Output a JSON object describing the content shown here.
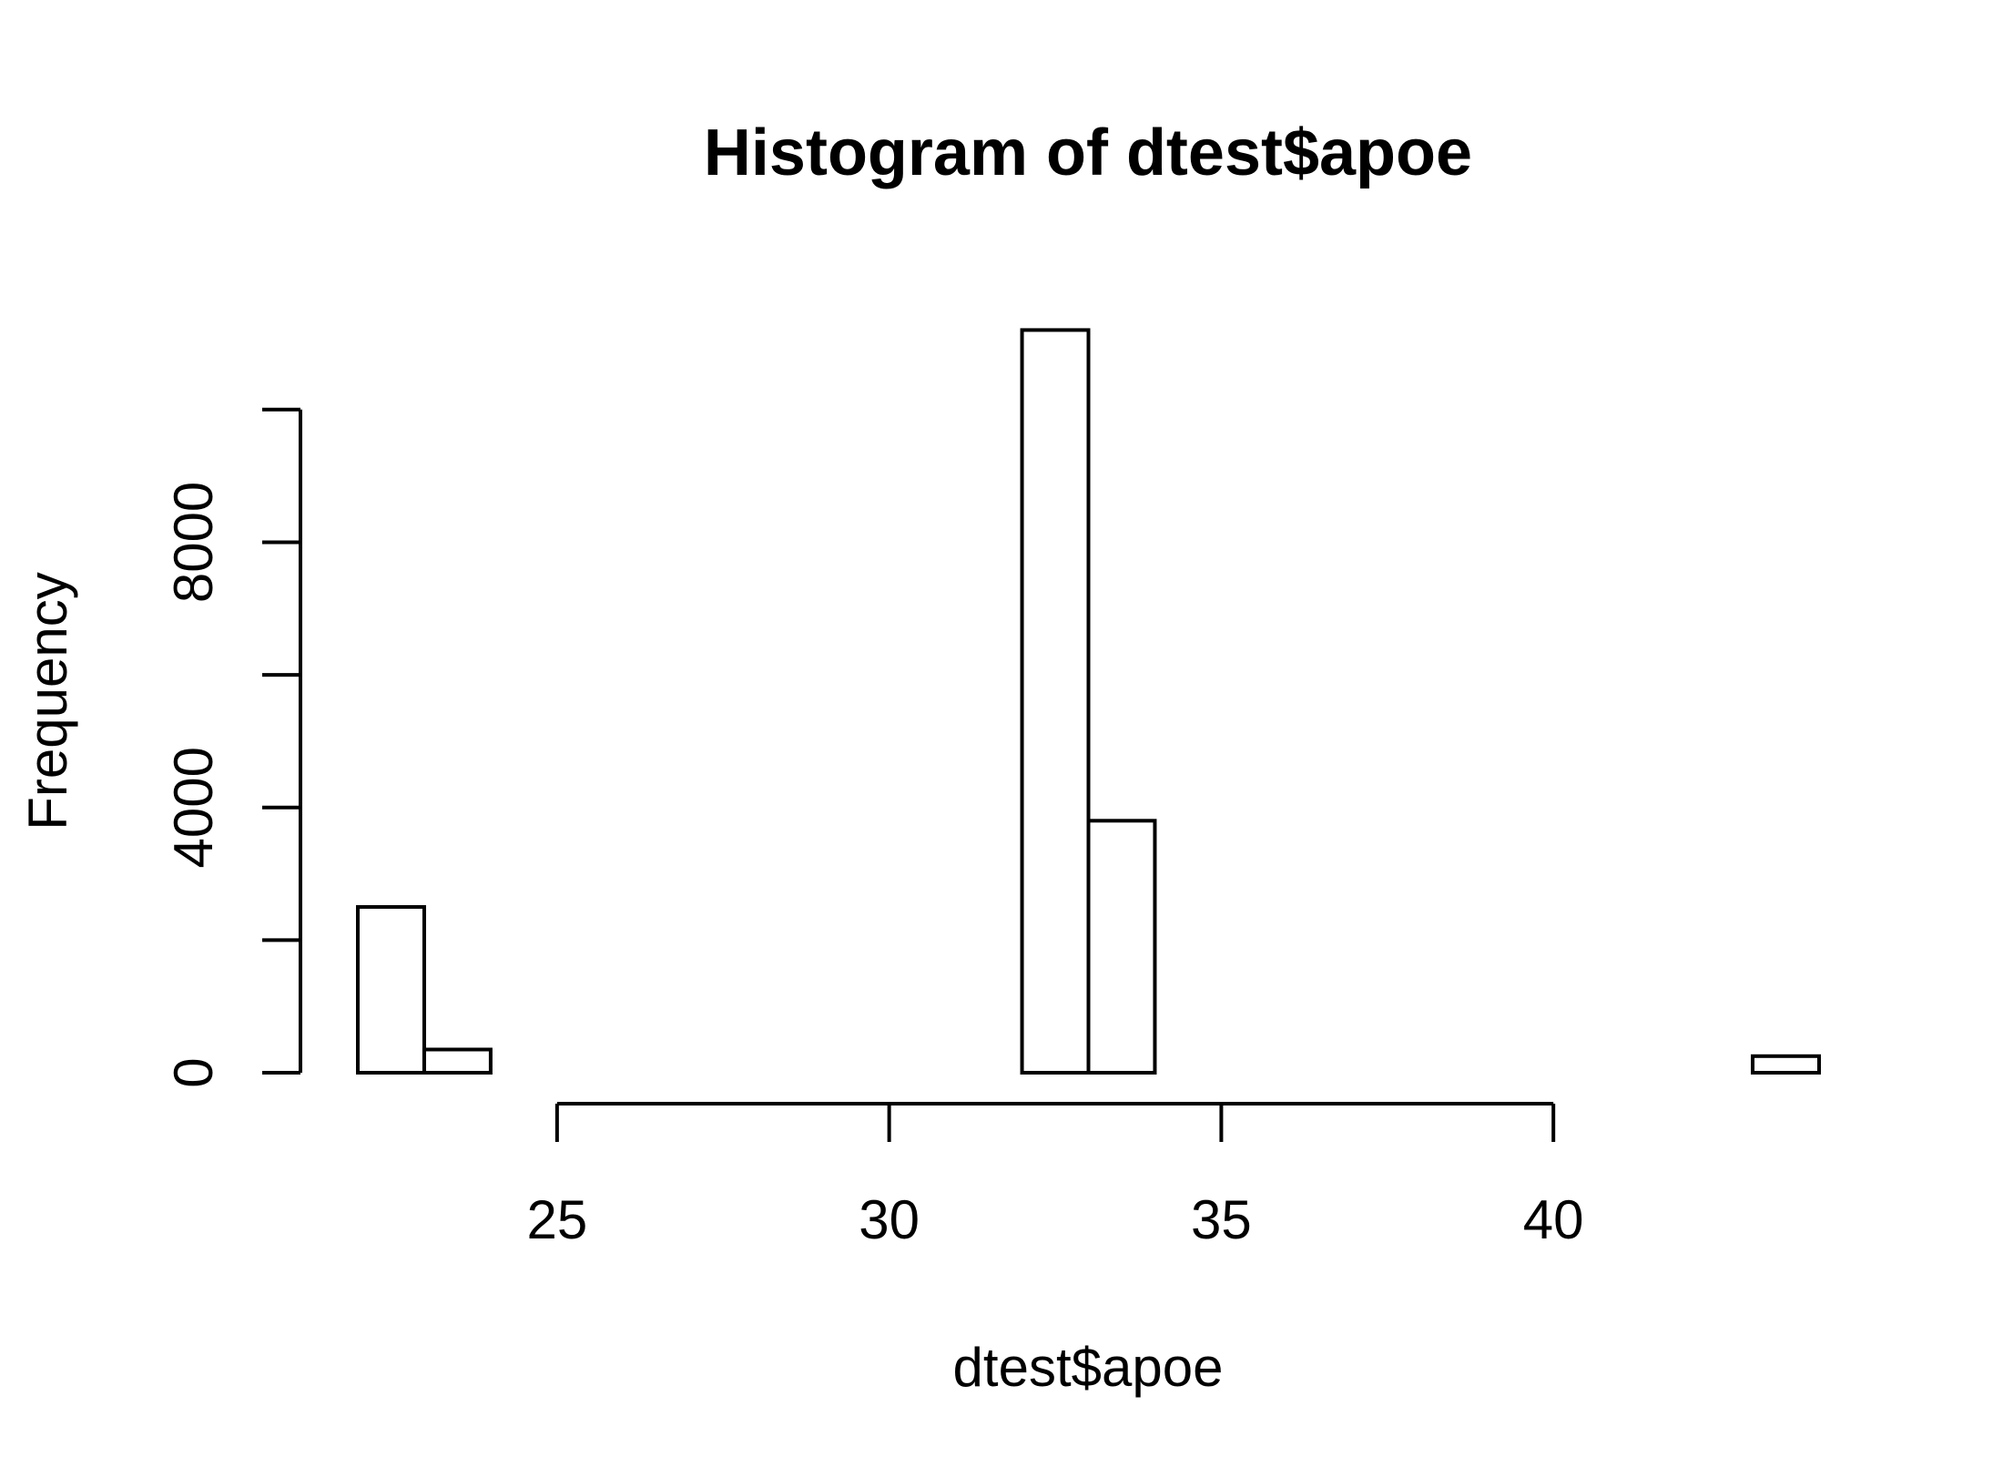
{
  "chart_data": {
    "type": "bar",
    "title": "Histogram of dtest$apoe",
    "xlabel": "dtest$apoe",
    "ylabel": "Frequency",
    "x_ticks": [
      25,
      30,
      35,
      40
    ],
    "y_ticks": [
      0,
      4000,
      8000
    ],
    "y_minor_ticks": [
      0,
      2000,
      4000,
      6000,
      8000,
      10000
    ],
    "bin_width": 1,
    "bins": [
      {
        "start": 22,
        "end": 23,
        "count": 2500
      },
      {
        "start": 23,
        "end": 24,
        "count": 350
      },
      {
        "start": 24,
        "end": 25,
        "count": 0
      },
      {
        "start": 25,
        "end": 26,
        "count": 0
      },
      {
        "start": 26,
        "end": 27,
        "count": 0
      },
      {
        "start": 27,
        "end": 28,
        "count": 0
      },
      {
        "start": 28,
        "end": 29,
        "count": 0
      },
      {
        "start": 29,
        "end": 30,
        "count": 0
      },
      {
        "start": 30,
        "end": 31,
        "count": 0
      },
      {
        "start": 31,
        "end": 32,
        "count": 0
      },
      {
        "start": 32,
        "end": 33,
        "count": 11200
      },
      {
        "start": 33,
        "end": 34,
        "count": 3800
      },
      {
        "start": 34,
        "end": 35,
        "count": 0
      },
      {
        "start": 35,
        "end": 36,
        "count": 0
      },
      {
        "start": 36,
        "end": 37,
        "count": 0
      },
      {
        "start": 37,
        "end": 38,
        "count": 0
      },
      {
        "start": 38,
        "end": 39,
        "count": 0
      },
      {
        "start": 39,
        "end": 40,
        "count": 0
      },
      {
        "start": 40,
        "end": 41,
        "count": 0
      },
      {
        "start": 41,
        "end": 42,
        "count": 0
      },
      {
        "start": 42,
        "end": 43,
        "count": 0
      },
      {
        "start": 43,
        "end": 44,
        "count": 250
      }
    ],
    "xlim": [
      22,
      44
    ],
    "ylim": [
      0,
      11200
    ],
    "x_axis_range": [
      25,
      40
    ],
    "y_axis_range": [
      0,
      10000
    ],
    "grid": false,
    "legend": "none"
  }
}
